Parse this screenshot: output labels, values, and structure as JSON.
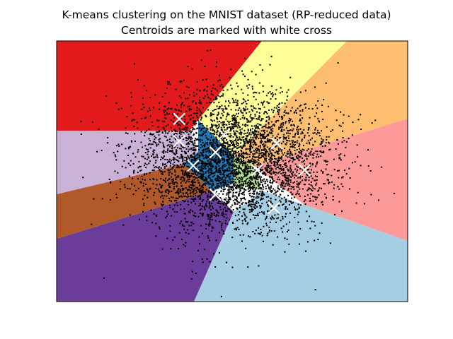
{
  "chart_data": {
    "type": "scatter",
    "title": "K-means clustering on the MNIST dataset (RP-reduced data)",
    "subtitle": "Centroids are marked with white cross",
    "xlabel": "",
    "ylabel": "",
    "xticks": [],
    "yticks": [],
    "xlim": [
      -6.3,
      6.3
    ],
    "ylim": [
      -6.0,
      5.7
    ],
    "grid": false,
    "legend": "none",
    "point_color": "#000000",
    "centroid_marker": "x",
    "centroid_color": "#ffffff",
    "centroids": [
      {
        "x": -1.9,
        "y": 2.2
      },
      {
        "x": -1.9,
        "y": 1.2
      },
      {
        "x": -1.4,
        "y": 0.1
      },
      {
        "x": -0.6,
        "y": 0.7
      },
      {
        "x": -0.3,
        "y": 1.5
      },
      {
        "x": 0.9,
        "y": -0.1
      },
      {
        "x": 1.6,
        "y": 1.1
      },
      {
        "x": 2.6,
        "y": -0.1
      },
      {
        "x": -0.6,
        "y": -1.2
      },
      {
        "x": 1.5,
        "y": -1.8
      }
    ],
    "regions": [
      {
        "color": "#e31a1c"
      },
      {
        "color": "#ffff99"
      },
      {
        "color": "#fdbf6f"
      },
      {
        "color": "#fb9a99"
      },
      {
        "color": "#a6cee3"
      },
      {
        "color": "#6a3d9a"
      },
      {
        "color": "#b15928"
      },
      {
        "color": "#cab2d6"
      },
      {
        "color": "#b2df8a"
      },
      {
        "color": "#1f78b4"
      }
    ],
    "point_cloud": {
      "center": [
        0,
        0.3
      ],
      "spread": [
        1.7,
        1.5
      ],
      "count": 4200,
      "seed": 7
    }
  }
}
